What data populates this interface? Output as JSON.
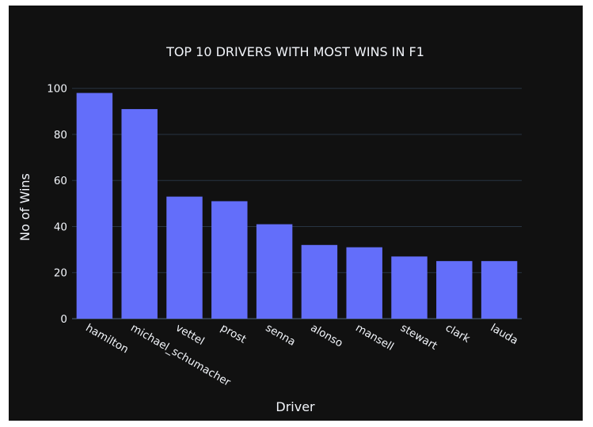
{
  "chart_data": {
    "type": "bar",
    "title": "TOP 10 DRIVERS WITH MOST WINS IN F1",
    "xlabel": "Driver",
    "ylabel": "No of Wins",
    "categories": [
      "hamilton",
      "michael_schumacher",
      "vettel",
      "prost",
      "senna",
      "alonso",
      "mansell",
      "stewart",
      "clark",
      "lauda"
    ],
    "values": [
      98,
      91,
      53,
      51,
      41,
      32,
      31,
      27,
      25,
      25
    ],
    "ylim": [
      0,
      103
    ],
    "yticks": [
      0,
      20,
      40,
      60,
      80,
      100
    ],
    "grid": true,
    "bar_color": "#636efa",
    "background_color": "#111111",
    "text_color": "#f2f5fa",
    "grid_color": "#283442"
  }
}
